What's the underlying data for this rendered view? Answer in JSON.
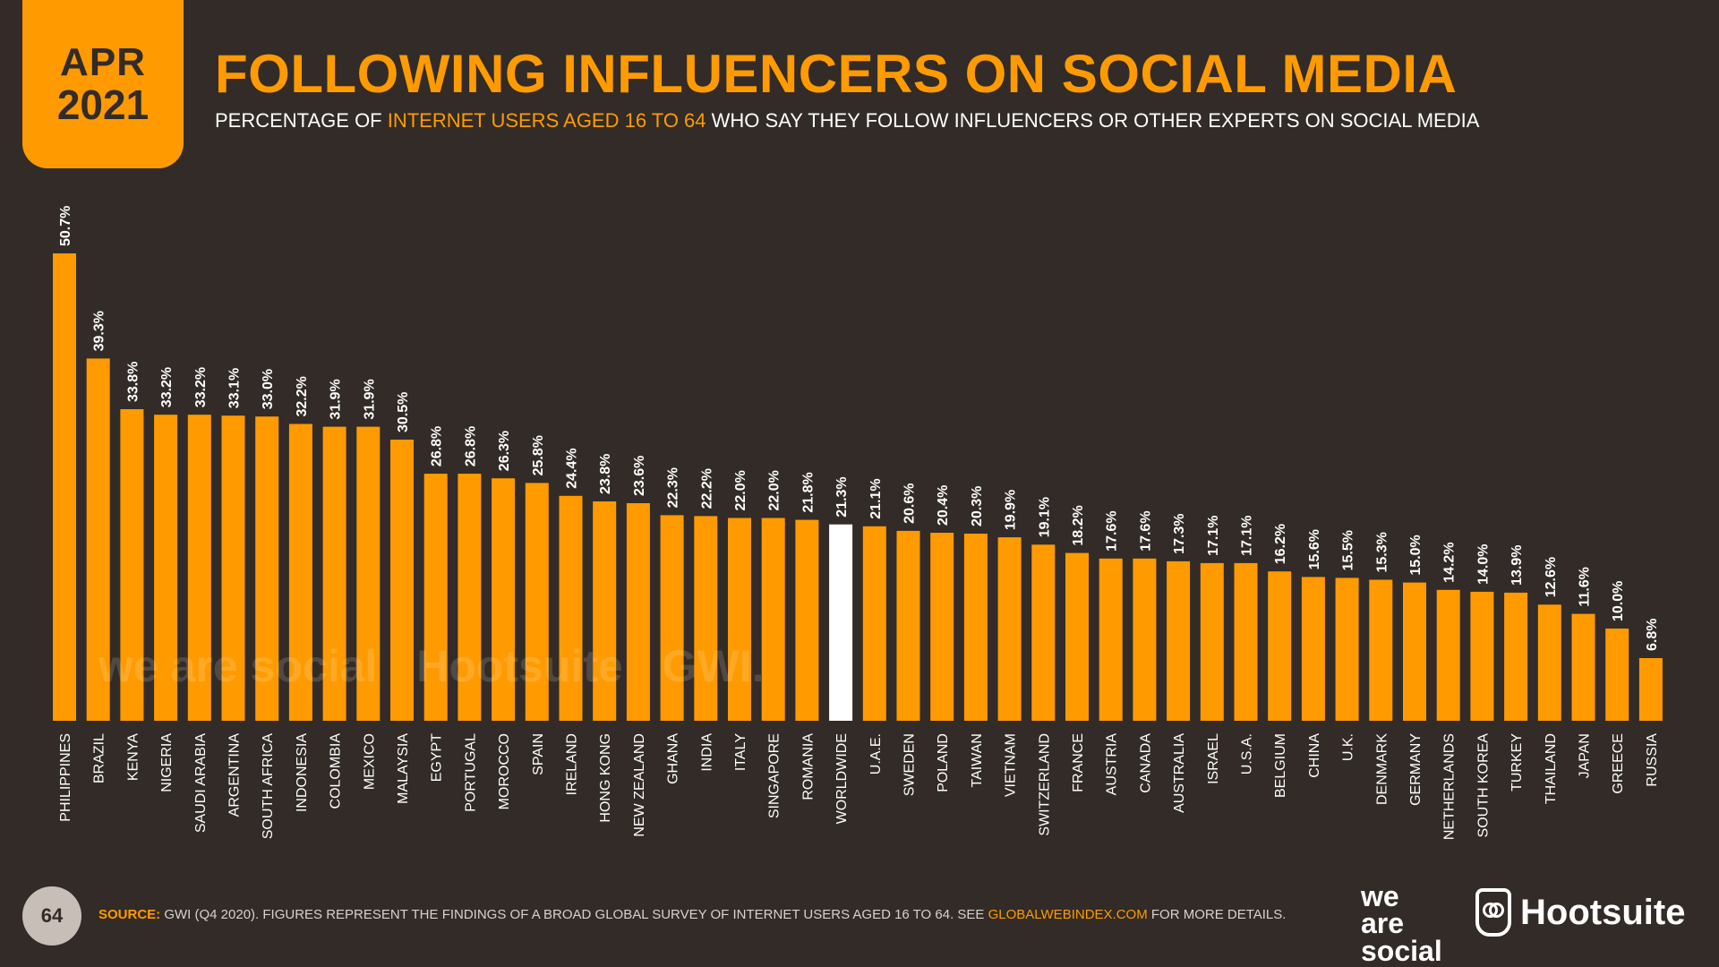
{
  "header": {
    "month": "APR",
    "year": "2021",
    "title": "FOLLOWING INFLUENCERS ON SOCIAL MEDIA",
    "subtitle_a": "PERCENTAGE OF ",
    "subtitle_highlight": "INTERNET USERS AGED 16 TO 64",
    "subtitle_b": " WHO SAY THEY FOLLOW INFLUENCERS OR OTHER EXPERTS ON SOCIAL MEDIA"
  },
  "colors": {
    "background": "#322b27",
    "accent": "#ff9b00",
    "highlight_bar": "#ffffff"
  },
  "chart_data": {
    "type": "bar",
    "orientation": "vertical",
    "highlight_category": "WORLDWIDE",
    "categories": [
      "PHILIPPINES",
      "BRAZIL",
      "KENYA",
      "NIGERIA",
      "SAUDI ARABIA",
      "ARGENTINA",
      "SOUTH AFRICA",
      "INDONESIA",
      "COLOMBIA",
      "MEXICO",
      "MALAYSIA",
      "EGYPT",
      "PORTUGAL",
      "MOROCCO",
      "SPAIN",
      "IRELAND",
      "HONG KONG",
      "NEW ZEALAND",
      "GHANA",
      "INDIA",
      "ITALY",
      "SINGAPORE",
      "ROMANIA",
      "WORLDWIDE",
      "U.A.E.",
      "SWEDEN",
      "POLAND",
      "TAIWAN",
      "VIETNAM",
      "SWITZERLAND",
      "FRANCE",
      "AUSTRIA",
      "CANADA",
      "AUSTRALIA",
      "ISRAEL",
      "U.S.A.",
      "BELGIUM",
      "CHINA",
      "U.K.",
      "DENMARK",
      "GERMANY",
      "NETHERLANDS",
      "SOUTH KOREA",
      "TURKEY",
      "THAILAND",
      "JAPAN",
      "GREECE",
      "RUSSIA"
    ],
    "values": [
      50.7,
      39.3,
      33.8,
      33.2,
      33.2,
      33.1,
      33.0,
      32.2,
      31.9,
      31.9,
      30.5,
      26.8,
      26.8,
      26.3,
      25.8,
      24.4,
      23.8,
      23.6,
      22.3,
      22.2,
      22.0,
      22.0,
      21.8,
      21.3,
      21.1,
      20.6,
      20.4,
      20.3,
      19.9,
      19.1,
      18.2,
      17.6,
      17.6,
      17.3,
      17.1,
      17.1,
      16.2,
      15.6,
      15.5,
      15.3,
      15.0,
      14.2,
      14.0,
      13.9,
      12.6,
      11.6,
      10.0,
      6.8
    ],
    "labels": [
      "50.7%",
      "39.3%",
      "33.8%",
      "33.2%",
      "33.2%",
      "33.1%",
      "33.0%",
      "32.2%",
      "31.9%",
      "31.9%",
      "30.5%",
      "26.8%",
      "26.8%",
      "26.3%",
      "25.8%",
      "24.4%",
      "23.8%",
      "23.6%",
      "22.3%",
      "22.2%",
      "22.0%",
      "22.0%",
      "21.8%",
      "21.3%",
      "21.1%",
      "20.6%",
      "20.4%",
      "20.3%",
      "19.9%",
      "19.1%",
      "18.2%",
      "17.6%",
      "17.6%",
      "17.3%",
      "17.1%",
      "17.1%",
      "16.2%",
      "15.6%",
      "15.5%",
      "15.3%",
      "15.0%",
      "14.2%",
      "14.0%",
      "13.9%",
      "12.6%",
      "11.6%",
      "10.0%",
      "6.8%"
    ],
    "ylim": [
      0,
      50.7
    ]
  },
  "watermark": {
    "brand1": "we are social",
    "brand2": "Hootsuite",
    "brand3": "GWI."
  },
  "footer": {
    "page_number": "64",
    "source_label": "SOURCE:",
    "source_text": " GWI (Q4 2020). FIGURES REPRESENT THE FINDINGS OF A BROAD GLOBAL SURVEY OF INTERNET USERS AGED 16 TO 64. SEE ",
    "source_link": "GLOBALWEBINDEX.COM",
    "source_end": " FOR MORE DETAILS.",
    "logo_we": "we",
    "logo_are": "are",
    "logo_social": "social",
    "logo_hootsuite": "Hootsuite"
  }
}
